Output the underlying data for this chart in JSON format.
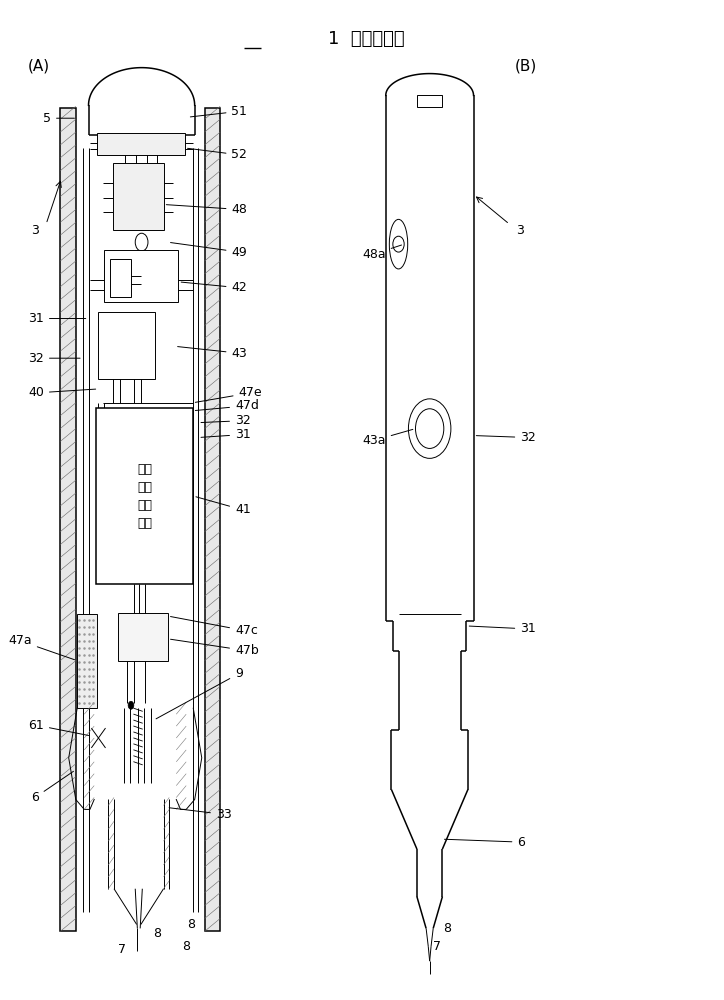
{
  "title": "1  位置指示器",
  "label_A": "(A)",
  "label_B": "(B)",
  "bg_color": "#ffffff",
  "line_color": "#000000",
  "font_size_title": 13,
  "font_size_label": 11,
  "font_size_ref": 9,
  "chinese_box_text": "信号\n发送\n控制\n电路"
}
